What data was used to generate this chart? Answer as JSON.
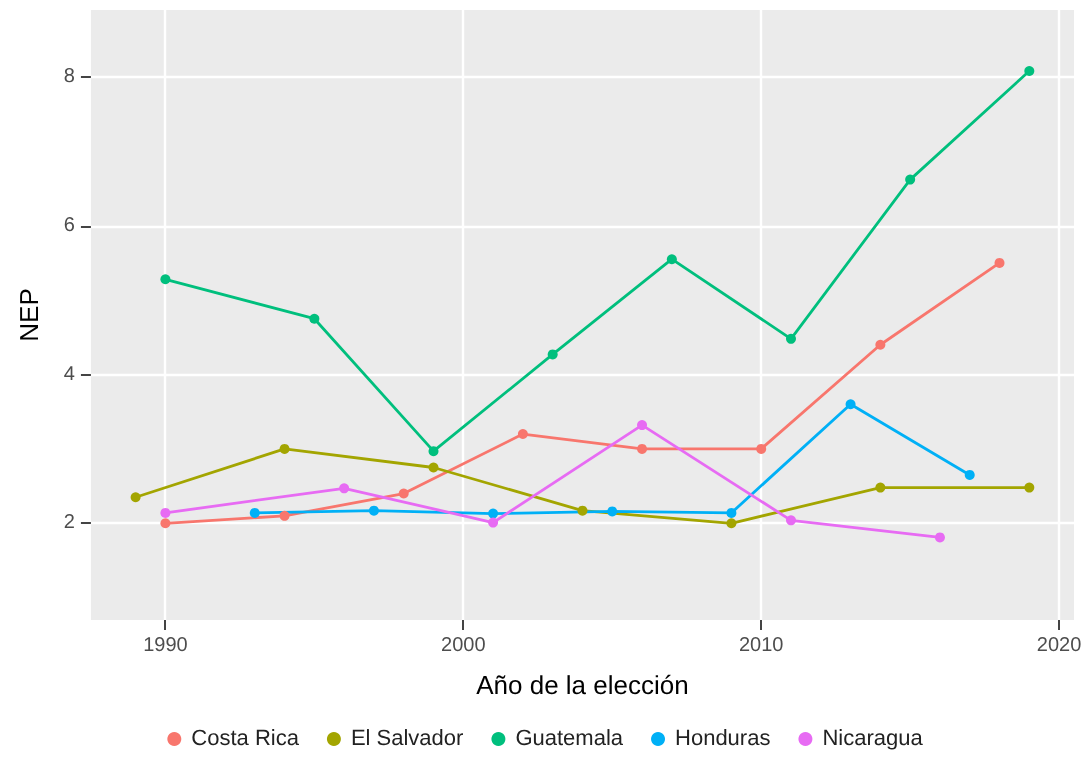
{
  "chart_data": {
    "type": "line",
    "xlabel": "Año de la elección",
    "ylabel": "NEP",
    "xlim": [
      1987.5,
      2020.5
    ],
    "xticks": [
      1990,
      2000,
      2010,
      2020
    ],
    "ylim": [
      0.7,
      8.9
    ],
    "yticks": [
      2,
      4,
      6,
      8
    ],
    "grid": true,
    "legend": "bottom",
    "marker": "circle",
    "line_style": "solid",
    "series": [
      {
        "name": "Costa Rica",
        "color": "#f8766d",
        "x": [
          1990,
          1994,
          1998,
          2002,
          2006,
          2010,
          2014,
          2018
        ],
        "values": [
          2.0,
          2.1,
          2.4,
          3.2,
          3.0,
          3.0,
          4.4,
          5.5
        ]
      },
      {
        "name": "El Salvador",
        "color": "#a3a500",
        "x": [
          1989,
          1994,
          1999,
          2004,
          2009,
          2014,
          2019
        ],
        "values": [
          2.35,
          3.0,
          2.75,
          2.17,
          2.0,
          2.48,
          2.48
        ]
      },
      {
        "name": "Guatemala",
        "color": "#00bf7d",
        "x": [
          1990,
          1995,
          1999,
          2003,
          2007,
          2011,
          2015,
          2019
        ],
        "values": [
          5.28,
          4.75,
          2.97,
          4.27,
          5.55,
          4.48,
          6.62,
          8.08
        ]
      },
      {
        "name": "Honduras",
        "color": "#00b0f6",
        "x": [
          1993,
          1997,
          2001,
          2005,
          2009,
          2013,
          2017
        ],
        "values": [
          2.14,
          2.17,
          2.13,
          2.16,
          2.14,
          3.6,
          2.65
        ]
      },
      {
        "name": "Nicaragua",
        "color": "#e76bf3",
        "x": [
          1990,
          1996,
          2001,
          2006,
          2011,
          2016
        ],
        "values": [
          2.14,
          2.47,
          2.01,
          3.32,
          2.04,
          1.81
        ]
      }
    ]
  }
}
